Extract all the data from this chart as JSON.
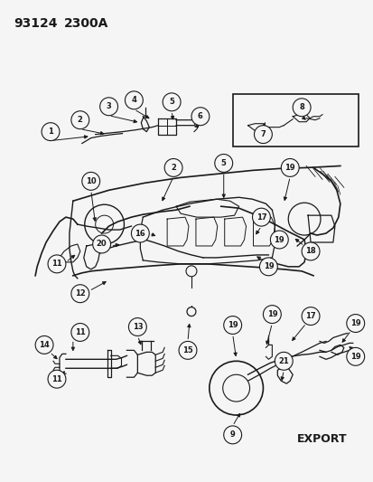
{
  "title_part1": "93124",
  "title_part2": "2300A",
  "background_color": "#f5f5f5",
  "line_color": "#1a1a1a",
  "fig_width": 4.14,
  "fig_height": 5.33,
  "dpi": 100,
  "export_label": "EXPORT"
}
